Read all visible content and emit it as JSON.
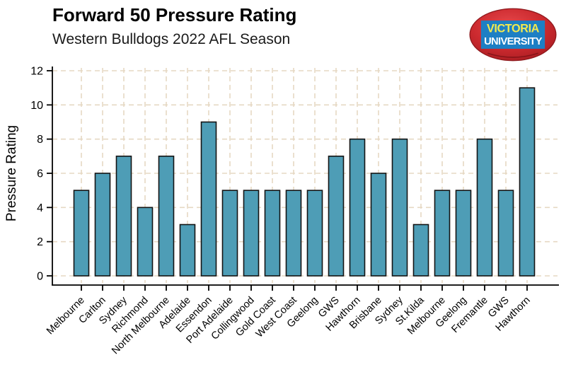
{
  "header": {
    "title": "Forward 50 Pressure Rating",
    "subtitle": "Western Bulldogs 2022 AFL Season"
  },
  "logo": {
    "line1": "VICTORIA",
    "line2": "UNIVERSITY",
    "ball_color": "#c9282d",
    "ball_edge_color": "#8d181c",
    "panel_color": "#1d7fc4",
    "line1_color": "#f3e94e",
    "line2_color": "#ffffff"
  },
  "chart_data": {
    "type": "bar",
    "title": "Forward 50 Pressure Rating",
    "subtitle": "Western Bulldogs 2022 AFL Season",
    "xlabel": "",
    "ylabel": "Pressure Rating",
    "ylim": [
      0,
      12
    ],
    "yticks": [
      0,
      2,
      4,
      6,
      8,
      10,
      12
    ],
    "grid": "dashed, horizontal at each y tick and vertical at each bar center",
    "grid_color": "#e6d8c3",
    "bar_color": "#4e9db6",
    "bar_border_color": "#141414",
    "axis_color": "#000000",
    "legend": "none",
    "categories": [
      "Melbourne",
      "Carlton",
      "Sydney",
      "Richmond",
      "North Melbourne",
      "Adelaide",
      "Essendon",
      "Port Adelaide",
      "Collingwood",
      "Gold Coast",
      "West Coast",
      "Geelong",
      "GWS",
      "Hawthorn",
      "Brisbane",
      "Sydney",
      "St.Kilda",
      "Melbourne",
      "Geelong",
      "Fremantle",
      "GWS",
      "Hawthorn"
    ],
    "values": [
      5,
      6,
      7,
      4,
      7,
      3,
      9,
      5,
      5,
      5,
      5,
      5,
      7,
      8,
      6,
      8,
      3,
      5,
      5,
      8,
      5,
      11
    ]
  }
}
